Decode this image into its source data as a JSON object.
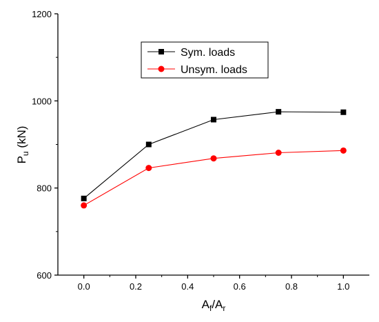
{
  "chart_data": {
    "type": "line",
    "x": [
      0.0,
      0.25,
      0.5,
      0.75,
      1.0
    ],
    "series": [
      {
        "name": "Sym. loads",
        "values": [
          776,
          900,
          957,
          975,
          974
        ],
        "color": "#000000",
        "marker": "square"
      },
      {
        "name": "Unsym. loads",
        "values": [
          760,
          846,
          868,
          881,
          886
        ],
        "color": "#ff0000",
        "marker": "circle"
      }
    ],
    "xlim": [
      -0.1,
      1.1
    ],
    "ylim": [
      600,
      1200
    ],
    "x_ticks": [
      0.0,
      0.2,
      0.4,
      0.6,
      0.8,
      1.0
    ],
    "x_tick_labels": [
      "0.0",
      "0.2",
      "0.4",
      "0.6",
      "0.8",
      "1.0"
    ],
    "y_ticks": [
      600,
      800,
      1000,
      1200
    ],
    "y_tick_labels": [
      "600",
      "800",
      "1000",
      "1200"
    ],
    "xlabel": {
      "main1": "A",
      "sub1": "f",
      "slash": "/A",
      "sub2": "r"
    },
    "ylabel": {
      "main1": "P",
      "sub1": "u",
      "main2": " (kN)"
    },
    "grid": false,
    "legend_position": "top-center"
  }
}
